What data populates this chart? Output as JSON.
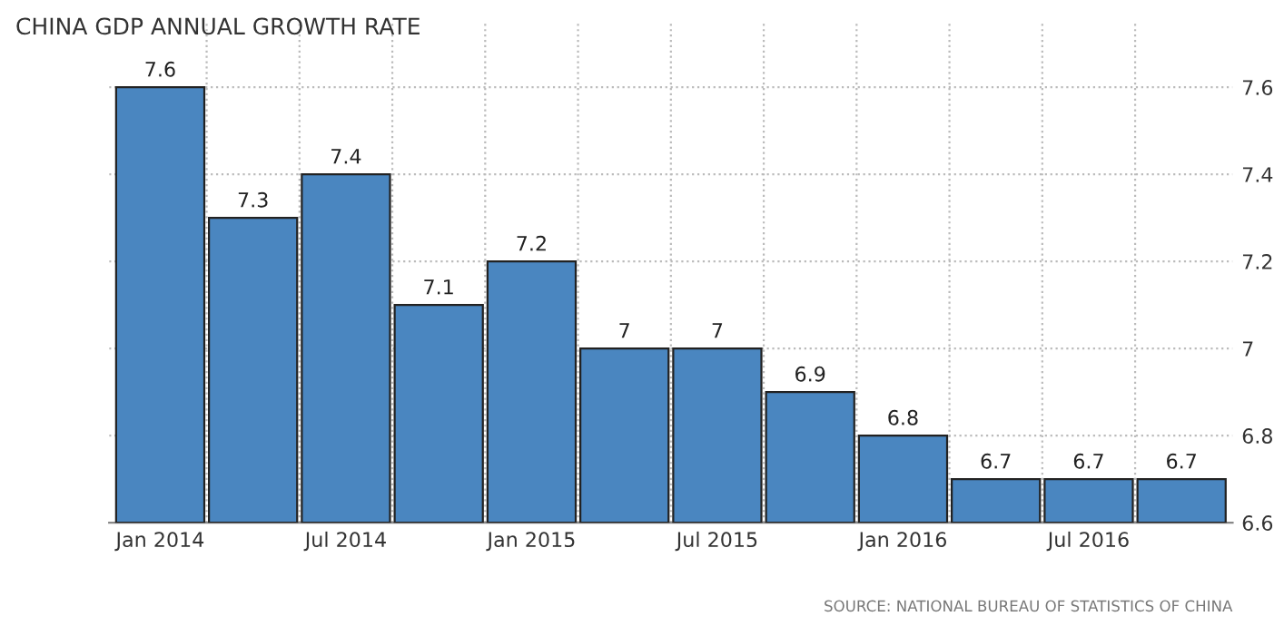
{
  "chart_data": {
    "type": "bar",
    "title": "CHINA GDP ANNUAL GROWTH RATE",
    "categories": [
      "Jan 2014",
      null,
      "Jul 2014",
      null,
      "Jan 2015",
      null,
      "Jul 2015",
      null,
      "Jan 2016",
      null,
      "Jul 2016",
      null
    ],
    "values": [
      7.6,
      7.3,
      7.4,
      7.1,
      7.2,
      7,
      7,
      6.9,
      6.8,
      6.7,
      6.7,
      6.7
    ],
    "color": "#4a86c0",
    "ylim": [
      6.6,
      7.75
    ],
    "yticks": [
      6.6,
      6.8,
      7,
      7.2,
      7.4,
      7.6
    ],
    "grid": true,
    "data_labels": true,
    "annotations": [
      "SOURCE: NATIONAL BUREAU OF STATISTICS OF CHINA"
    ]
  }
}
